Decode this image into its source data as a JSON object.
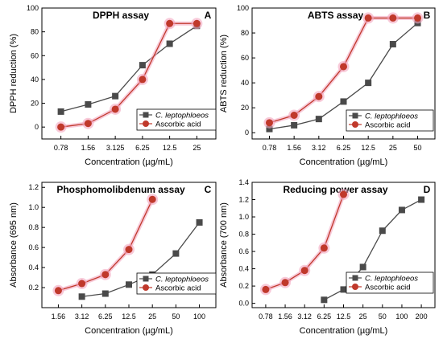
{
  "colors": {
    "series_1": "#4a4a4a",
    "series_2": "#c0392b",
    "series_2_glow": "#f4a7c0"
  },
  "chart_data": [
    {
      "type": "line",
      "panel_letter": "A",
      "title": "DPPH assay",
      "xlabel": "Concentration (µg/mL)",
      "ylabel": "DPPH reduction (%)",
      "categories": [
        "0.78",
        "1.56",
        "3.125",
        "6.25",
        "12.5",
        "25"
      ],
      "ylim": [
        -10,
        100
      ],
      "yticks": [
        0,
        20,
        40,
        60,
        80,
        100
      ],
      "ytick_labels": [
        "0",
        "20",
        "40",
        "60",
        "80",
        "100"
      ],
      "legend_position": "lower-right",
      "series": [
        {
          "name": "C. leptophloeos",
          "marker": "square",
          "values": [
            13,
            19,
            26,
            52,
            70,
            85
          ]
        },
        {
          "name": "Ascorbic acid",
          "marker": "circle",
          "values": [
            0,
            3,
            15,
            40,
            87,
            87
          ]
        }
      ]
    },
    {
      "type": "line",
      "panel_letter": "B",
      "title": "ABTS assay",
      "xlabel": "Concentration (µg/mL)",
      "ylabel": "ABTS reduction (%)",
      "categories": [
        "0.78",
        "1.56",
        "3.12",
        "6.25",
        "12.5",
        "25",
        "50"
      ],
      "ylim": [
        -5,
        100
      ],
      "yticks": [
        0,
        20,
        40,
        60,
        80,
        100
      ],
      "ytick_labels": [
        "0",
        "20",
        "40",
        "60",
        "80",
        "100"
      ],
      "legend_position": "lower-right",
      "series": [
        {
          "name": "C. leptophloeos",
          "marker": "square",
          "values": [
            3,
            6,
            11,
            25,
            40,
            71,
            88
          ]
        },
        {
          "name": "Ascorbic acid",
          "marker": "circle",
          "values": [
            8,
            14,
            29,
            53,
            92,
            92,
            92
          ]
        }
      ]
    },
    {
      "type": "line",
      "panel_letter": "C",
      "title": "Phosphomolibdenum assay",
      "xlabel": "Concentration (µg/mL)",
      "ylabel": "Absorbance (695 nm)",
      "categories": [
        "1.56",
        "3.12",
        "6.25",
        "12.5",
        "25",
        "50",
        "100"
      ],
      "ylim": [
        0.0,
        1.25
      ],
      "yticks": [
        0.2,
        0.4,
        0.6,
        0.8,
        1.0,
        1.2
      ],
      "ytick_labels": [
        "0.2",
        "0.4",
        "0.6",
        "0.8",
        "1.0",
        "1.2"
      ],
      "legend_position": "lower-right",
      "series": [
        {
          "name": "C. leptophloeos",
          "marker": "square",
          "values": [
            null,
            0.11,
            0.14,
            0.23,
            0.33,
            0.54,
            0.85
          ]
        },
        {
          "name": "Ascorbic acid",
          "marker": "circle",
          "values": [
            0.17,
            0.24,
            0.33,
            0.58,
            1.08,
            null,
            null
          ]
        }
      ]
    },
    {
      "type": "line",
      "panel_letter": "D",
      "title": "Reducing power assay",
      "xlabel": "Concentration (µg/mL)",
      "ylabel": "Absorbance (700 nm)",
      "categories": [
        "0.78",
        "1.56",
        "3.12",
        "6.25",
        "12.5",
        "25",
        "50",
        "100",
        "200"
      ],
      "ylim": [
        -0.05,
        1.4
      ],
      "yticks": [
        0.0,
        0.2,
        0.4,
        0.6,
        0.8,
        1.0,
        1.2,
        1.4
      ],
      "ytick_labels": [
        "0.0",
        "0.2",
        "0.4",
        "0.6",
        "0.8",
        "1.0",
        "1.2",
        "1.4"
      ],
      "legend_position": "lower-right",
      "series": [
        {
          "name": "C. leptophloeos",
          "marker": "square",
          "values": [
            null,
            null,
            null,
            0.04,
            0.16,
            0.42,
            0.84,
            1.08,
            1.2
          ]
        },
        {
          "name": "Ascorbic acid",
          "marker": "circle",
          "values": [
            0.16,
            0.24,
            0.38,
            0.64,
            1.26,
            null,
            null,
            null,
            null
          ]
        }
      ]
    }
  ]
}
